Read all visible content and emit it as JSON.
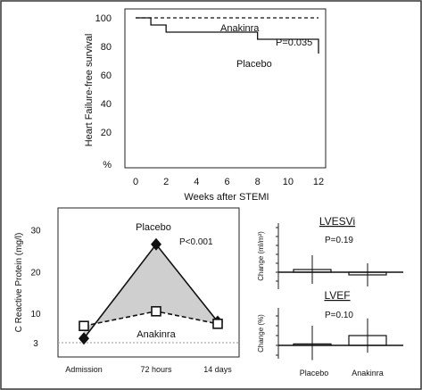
{
  "chart_data": [
    {
      "type": "line",
      "panel": "survival",
      "xlabel": "Weeks after STEMI",
      "ylabel": "Heart Failure-free survival",
      "x_ticks": [
        "0",
        "2",
        "4",
        "6",
        "8",
        "10",
        "12"
      ],
      "y_ticks": [
        "100",
        "80",
        "60",
        "40",
        "20",
        "%"
      ],
      "xlim": [
        0,
        12
      ],
      "ylim": [
        0,
        100
      ],
      "series": [
        {
          "name": "Anakinra",
          "style": "dashed",
          "points": [
            [
              0,
              100
            ],
            [
              12,
              100
            ]
          ]
        },
        {
          "name": "Placebo",
          "style": "solid",
          "points": [
            [
              0,
              100
            ],
            [
              1,
              100
            ],
            [
              1,
              95
            ],
            [
              2,
              95
            ],
            [
              2,
              90
            ],
            [
              8,
              90
            ],
            [
              8,
              85
            ],
            [
              12,
              85
            ],
            [
              12,
              75
            ]
          ]
        }
      ],
      "annotations": [
        "P=0.035"
      ]
    },
    {
      "type": "line",
      "panel": "crp",
      "xlabel": "",
      "ylabel": "C Reactive Protein (mg/l)",
      "categories": [
        "Admission",
        "72 hours",
        "14 days"
      ],
      "y_ticks": [
        "30",
        "20",
        "10",
        "3"
      ],
      "ylim": [
        0,
        32
      ],
      "reference_line": 3,
      "series": [
        {
          "name": "Placebo",
          "style": "solid",
          "marker": "diamond",
          "values": [
            4,
            26.5,
            8
          ]
        },
        {
          "name": "Anakinra",
          "style": "dashed",
          "marker": "square",
          "values": [
            7,
            10.5,
            7.5
          ]
        }
      ],
      "annotations": [
        "P<0.001"
      ]
    },
    {
      "type": "bar",
      "panel": "lvesvi",
      "title": "LVESVi",
      "ylabel": "Change  (ml/m²)",
      "categories": [
        "Placebo",
        "Anakinra"
      ],
      "values": [
        3,
        -3
      ],
      "error_bars": [
        [
          -13,
          19
        ],
        [
          -16,
          10
        ]
      ],
      "annotations": [
        "P=0.19"
      ]
    },
    {
      "type": "bar",
      "panel": "lvef",
      "title": "LVEF",
      "ylabel": "Change  (%)",
      "categories": [
        "Placebo",
        "Anakinra"
      ],
      "values": [
        0.3,
        2
      ],
      "error_bars": [
        [
          -3,
          4
        ],
        [
          -1.5,
          5.5
        ]
      ],
      "annotations": [
        "P=0.10"
      ]
    }
  ]
}
